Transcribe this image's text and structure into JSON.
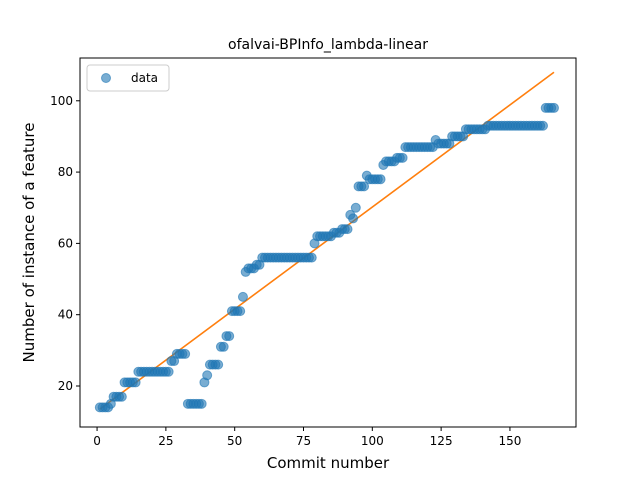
{
  "chart_data": {
    "type": "scatter",
    "title": "ofalvai-BPInfo_lambda-linear",
    "xlabel": "Commit number",
    "ylabel": "Number of instance of a feature",
    "xlim": [
      -6.2,
      174
    ],
    "ylim": [
      8.5,
      112
    ],
    "xticks": [
      0,
      25,
      50,
      75,
      100,
      125,
      150
    ],
    "yticks": [
      20,
      40,
      60,
      80,
      100
    ],
    "grid": false,
    "legend": {
      "placement": "upper-left",
      "entries": [
        "data"
      ]
    },
    "series": [
      {
        "name": "data",
        "kind": "scatter",
        "color": "#1f77b4",
        "x": [
          1,
          2,
          3,
          4,
          5,
          6,
          7,
          8,
          9,
          10,
          11,
          12,
          13,
          14,
          15,
          16,
          17,
          18,
          19,
          20,
          21,
          22,
          23,
          24,
          25,
          26,
          27,
          28,
          29,
          30,
          31,
          32,
          33,
          34,
          35,
          36,
          37,
          38,
          39,
          40,
          41,
          42,
          43,
          44,
          45,
          46,
          47,
          48,
          49,
          50,
          51,
          52,
          53,
          54,
          55,
          56,
          57,
          58,
          59,
          60,
          61,
          62,
          63,
          64,
          65,
          66,
          67,
          68,
          69,
          70,
          71,
          72,
          73,
          74,
          75,
          76,
          77,
          78,
          79,
          80,
          81,
          82,
          83,
          84,
          85,
          86,
          87,
          88,
          89,
          90,
          91,
          92,
          93,
          94,
          95,
          96,
          97,
          98,
          99,
          100,
          101,
          102,
          103,
          104,
          105,
          106,
          107,
          108,
          109,
          110,
          111,
          112,
          113,
          114,
          115,
          116,
          117,
          118,
          119,
          120,
          121,
          122,
          123,
          124,
          125,
          126,
          127,
          128,
          129,
          130,
          131,
          132,
          133,
          134,
          135,
          136,
          137,
          138,
          139,
          140,
          141,
          142,
          143,
          144,
          145,
          146,
          147,
          148,
          149,
          150,
          151,
          152,
          153,
          154,
          155,
          156,
          157,
          158,
          159,
          160,
          161,
          162,
          163,
          164,
          165,
          166
        ],
        "y": [
          14,
          14,
          14,
          14,
          15,
          17,
          17,
          17,
          17,
          21,
          21,
          21,
          21,
          21,
          24,
          24,
          24,
          24,
          24,
          24,
          24,
          24,
          24,
          24,
          24,
          24,
          27,
          27,
          29,
          29,
          29,
          29,
          15,
          15,
          15,
          15,
          15,
          15,
          21,
          23,
          26,
          26,
          26,
          26,
          31,
          31,
          34,
          34,
          41,
          41,
          41,
          41,
          45,
          52,
          53,
          53,
          53,
          54,
          54,
          56,
          56,
          56,
          56,
          56,
          56,
          56,
          56,
          56,
          56,
          56,
          56,
          56,
          56,
          56,
          56,
          56,
          56,
          56,
          60,
          62,
          62,
          62,
          62,
          62,
          62,
          63,
          63,
          63,
          64,
          64,
          64,
          68,
          67,
          70,
          76,
          76,
          76,
          79,
          78,
          78,
          78,
          78,
          78,
          82,
          83,
          83,
          83,
          83,
          84,
          84,
          84,
          87,
          87,
          87,
          87,
          87,
          87,
          87,
          87,
          87,
          87,
          87,
          89,
          88,
          88,
          88,
          88,
          88,
          90,
          90,
          90,
          90,
          90,
          92,
          92,
          92,
          92,
          92,
          92,
          92,
          92,
          93,
          93,
          93,
          93,
          93,
          93,
          93,
          93,
          93,
          93,
          93,
          93,
          93,
          93,
          93,
          93,
          93,
          93,
          93,
          93,
          93,
          98,
          98,
          98,
          98
        ]
      },
      {
        "name": "",
        "kind": "line",
        "color": "#ff7f0e",
        "x": [
          1,
          166
        ],
        "y": [
          13.5,
          108
        ]
      }
    ]
  }
}
